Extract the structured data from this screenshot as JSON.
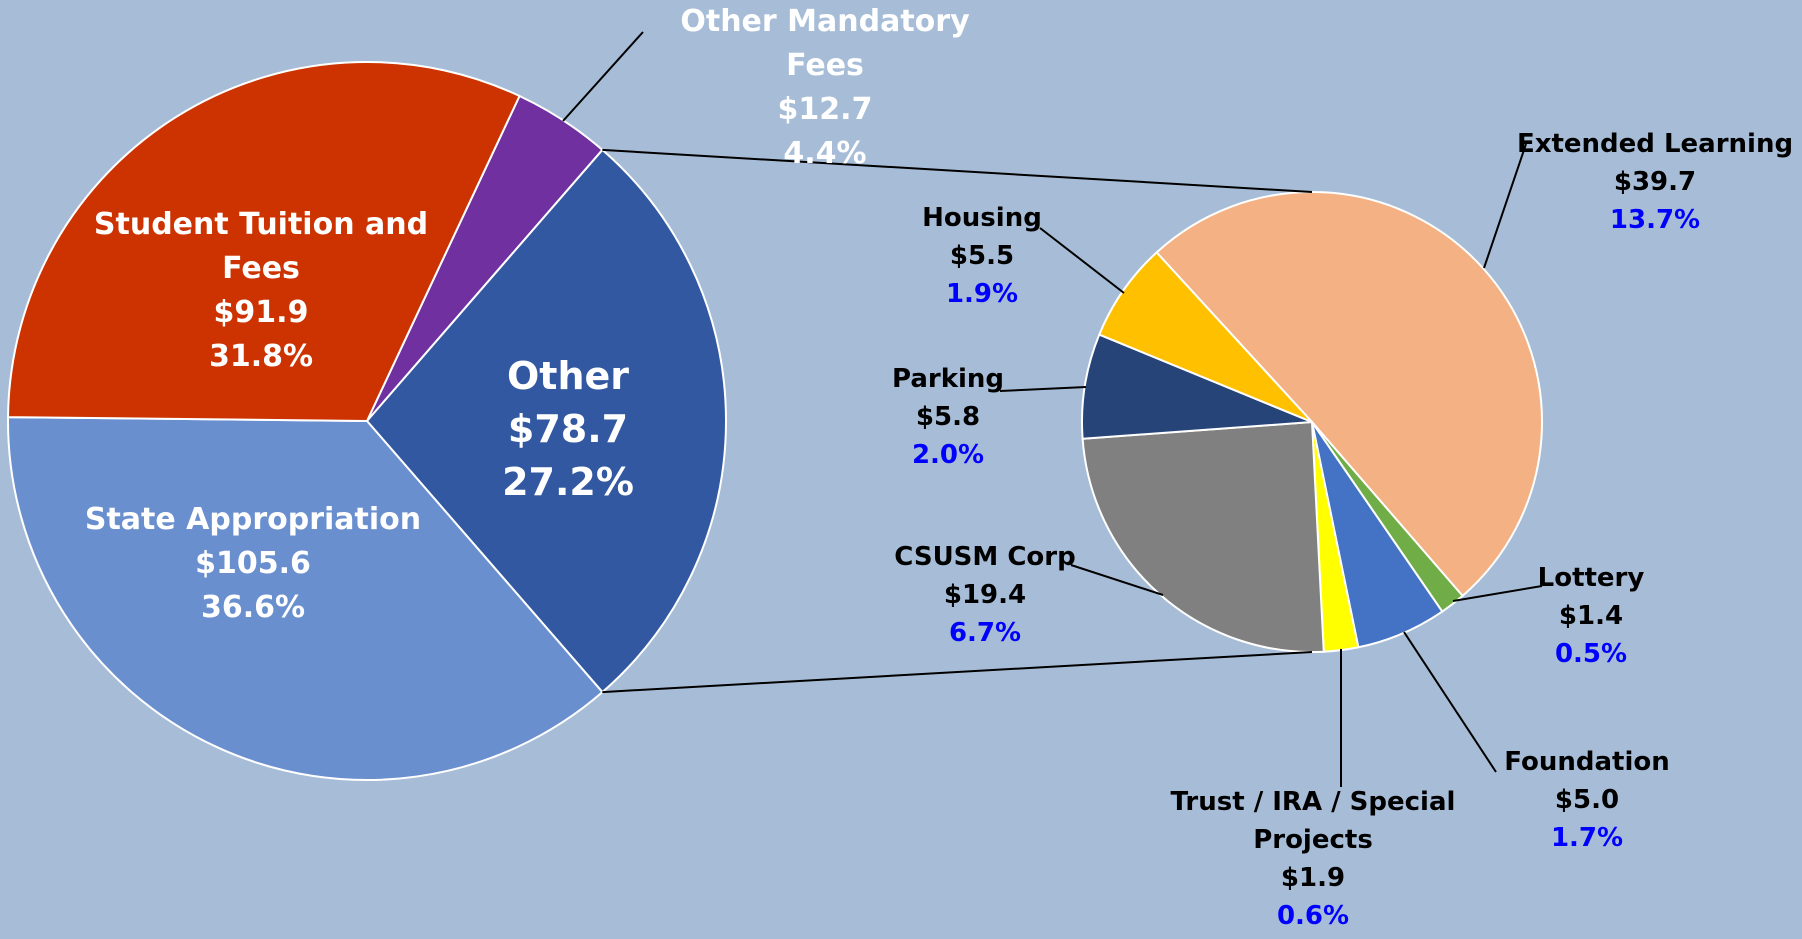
{
  "chart_data": {
    "type": "pie-of-pie",
    "pie": {
      "categories": [
        "Other Mandatory Fees",
        "Other",
        "State Appropriation",
        "Student Tuition and Fees"
      ],
      "values": [
        12.7,
        78.7,
        105.6,
        91.9
      ],
      "value_labels": [
        "$12.7",
        "$78.7",
        "$105.6",
        "$91.9"
      ],
      "shares": [
        4.4,
        27.2,
        36.6,
        31.8
      ],
      "share_labels": [
        "4.4%",
        "27.2%",
        "36.6%",
        "31.8%"
      ],
      "colors": [
        "#7030a0",
        "#3158a0",
        "#6a8fcf",
        "#cc3300"
      ],
      "label_color": "#ffffff",
      "share_label_color": "#ffffff"
    },
    "expanded": "Other",
    "sub_pie": {
      "categories": [
        "Extended Learning",
        "Lottery",
        "Foundation",
        "Trust / IRA / Special Projects",
        "CSUSM Corp",
        "Parking",
        "Housing"
      ],
      "values": [
        39.7,
        1.4,
        5.0,
        1.9,
        19.4,
        5.8,
        5.5
      ],
      "value_labels": [
        "$39.7",
        "$1.4",
        "$5.0",
        "$1.9",
        "$19.4",
        "$5.8",
        "$5.5"
      ],
      "shares": [
        13.7,
        0.5,
        1.7,
        0.6,
        6.7,
        2.0,
        1.9
      ],
      "share_labels": [
        "13.7%",
        "0.5%",
        "1.7%",
        "0.6%",
        "6.7%",
        "2.0%",
        "1.9%"
      ],
      "colors": [
        "#f4b183",
        "#70ad47",
        "#4472c4",
        "#ffff00",
        "#808080",
        "#264478",
        "#ffc000"
      ],
      "label_color": "#000000",
      "share_label_color": "#0000ff"
    }
  }
}
